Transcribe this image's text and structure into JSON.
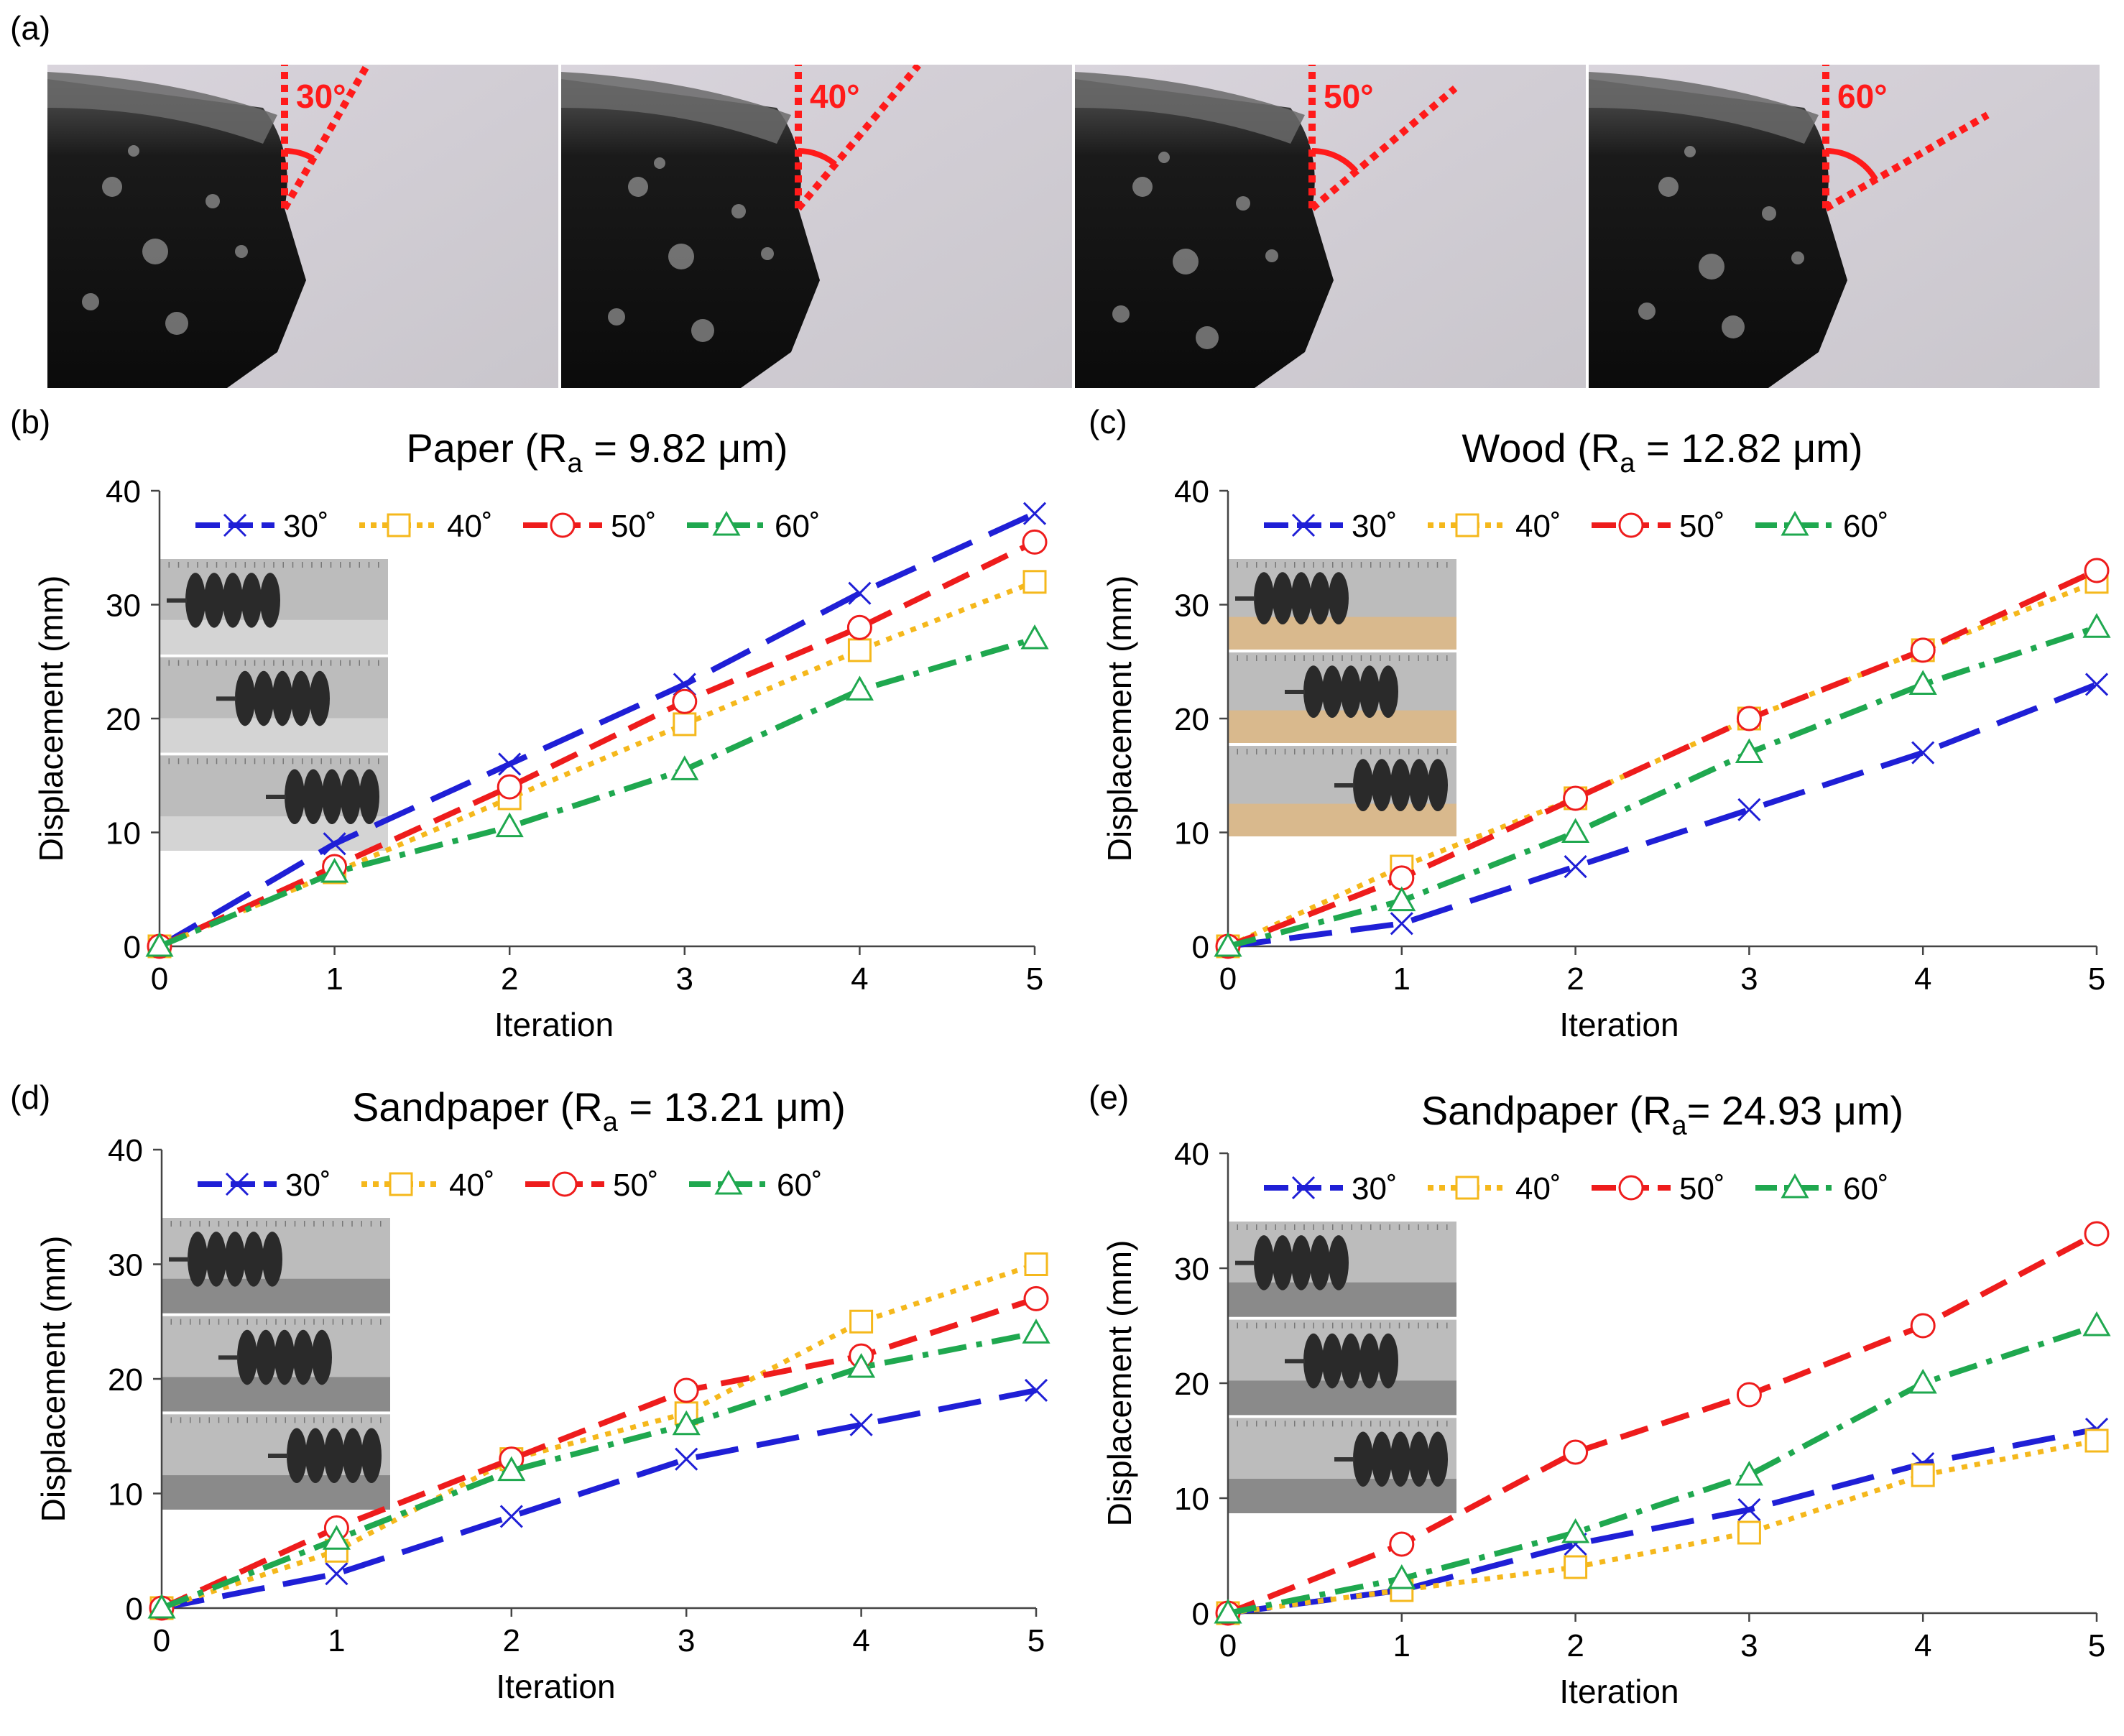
{
  "panel_labels": [
    "(a)",
    "(b)",
    "(c)",
    "(d)",
    "(e)"
  ],
  "photos": {
    "angle_labels": [
      "30°",
      "40°",
      "50°",
      "60°"
    ],
    "angles_deg": [
      30,
      40,
      50,
      60
    ]
  },
  "colors": {
    "30": "#1f1fd6",
    "40": "#f5b81c",
    "50": "#ee1c1c",
    "60": "#1fa84f",
    "angle_overlay": "#ff1a1a"
  },
  "legend_labels": [
    "30˚",
    "40˚",
    "50˚",
    "60˚"
  ],
  "chart_data": [
    {
      "type": "line",
      "panel": "(b)",
      "title": "Paper (R",
      "title_sub": "a",
      "title_rest": " = 9.82 μm)",
      "xlabel": "Iteration",
      "ylabel": "Displacement (mm)",
      "x": [
        0,
        1,
        2,
        3,
        4,
        5
      ],
      "xlim": [
        0,
        5
      ],
      "ylim": [
        0,
        40
      ],
      "xticks": [
        "0",
        "1",
        "2",
        "3",
        "4",
        "5"
      ],
      "yticks": [
        "0",
        "10",
        "20",
        "30",
        "40"
      ],
      "series": [
        {
          "name": "30˚",
          "values": [
            0,
            9,
            16,
            23,
            31,
            38
          ]
        },
        {
          "name": "40˚",
          "values": [
            0,
            6.5,
            13,
            19.5,
            26,
            32
          ]
        },
        {
          "name": "50˚",
          "values": [
            0,
            7,
            14,
            21.5,
            28,
            35.5
          ]
        },
        {
          "name": "60˚",
          "values": [
            0,
            6.5,
            10.5,
            15.5,
            22.5,
            27
          ]
        }
      ]
    },
    {
      "type": "line",
      "panel": "(c)",
      "title": "Wood (R",
      "title_sub": "a",
      "title_rest": " = 12.82 μm)",
      "xlabel": "Iteration",
      "ylabel": "Displacement (mm)",
      "x": [
        0,
        1,
        2,
        3,
        4,
        5
      ],
      "xlim": [
        0,
        5
      ],
      "ylim": [
        0,
        40
      ],
      "xticks": [
        "0",
        "1",
        "2",
        "3",
        "4",
        "5"
      ],
      "yticks": [
        "0",
        "10",
        "20",
        "30",
        "40"
      ],
      "series": [
        {
          "name": "30˚",
          "values": [
            0,
            2,
            7,
            12,
            17,
            23
          ]
        },
        {
          "name": "40˚",
          "values": [
            0,
            7,
            13,
            20,
            26,
            32
          ]
        },
        {
          "name": "50˚",
          "values": [
            0,
            6,
            13,
            20,
            26,
            33
          ]
        },
        {
          "name": "60˚",
          "values": [
            0,
            4,
            10,
            17,
            23,
            28
          ]
        }
      ]
    },
    {
      "type": "line",
      "panel": "(d)",
      "title": "Sandpaper (R",
      "title_sub": "a",
      "title_rest": " = 13.21 μm)",
      "xlabel": "Iteration",
      "ylabel": "Displacement (mm)",
      "x": [
        0,
        1,
        2,
        3,
        4,
        5
      ],
      "xlim": [
        0,
        5
      ],
      "ylim": [
        0,
        40
      ],
      "xticks": [
        "0",
        "1",
        "2",
        "3",
        "4",
        "5"
      ],
      "yticks": [
        "0",
        "10",
        "20",
        "30",
        "40"
      ],
      "series": [
        {
          "name": "30˚",
          "values": [
            0,
            3,
            8,
            13,
            16,
            19
          ]
        },
        {
          "name": "40˚",
          "values": [
            0,
            5,
            13,
            17,
            25,
            30
          ]
        },
        {
          "name": "50˚",
          "values": [
            0,
            7,
            13,
            19,
            22,
            27
          ]
        },
        {
          "name": "60˚",
          "values": [
            0,
            6,
            12,
            16,
            21,
            24
          ]
        }
      ]
    },
    {
      "type": "line",
      "panel": "(e)",
      "title": "Sandpaper (R",
      "title_sub": "a",
      "title_rest": "= 24.93 μm)",
      "xlabel": "Iteration",
      "ylabel": "Displacement (mm)",
      "x": [
        0,
        1,
        2,
        3,
        4,
        5
      ],
      "xlim": [
        0,
        5
      ],
      "ylim": [
        0,
        40
      ],
      "xticks": [
        "0",
        "1",
        "2",
        "3",
        "4",
        "5"
      ],
      "yticks": [
        "0",
        "10",
        "20",
        "30",
        "40"
      ],
      "series": [
        {
          "name": "30˚",
          "values": [
            0,
            2,
            6,
            9,
            13,
            16
          ]
        },
        {
          "name": "40˚",
          "values": [
            0,
            2,
            4,
            7,
            12,
            15
          ]
        },
        {
          "name": "50˚",
          "values": [
            0,
            6,
            14,
            19,
            25,
            33
          ]
        },
        {
          "name": "60˚",
          "values": [
            0,
            3,
            7,
            12,
            20,
            25
          ]
        }
      ]
    }
  ]
}
